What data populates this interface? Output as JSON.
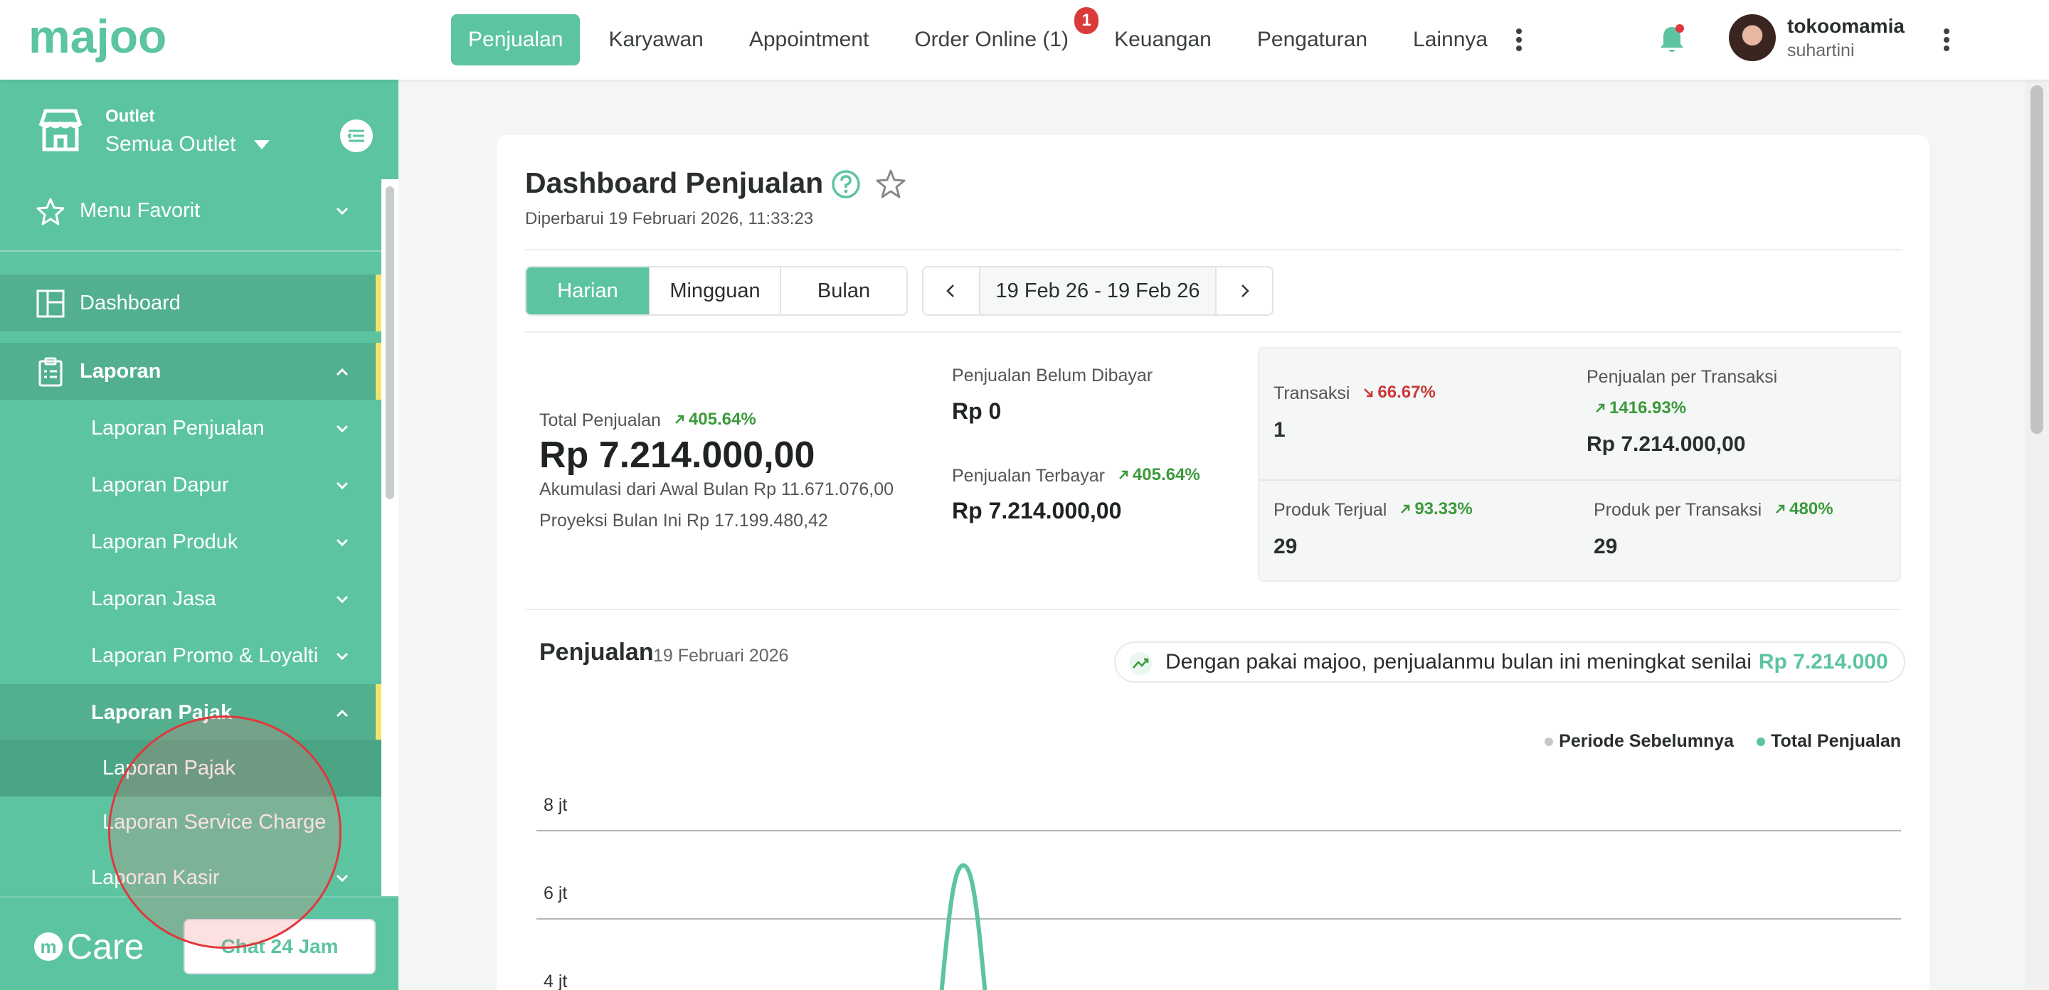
{
  "app": {
    "logo_text": "majoo"
  },
  "topnav": {
    "items": [
      {
        "label": "Penjualan"
      },
      {
        "label": "Karyawan"
      },
      {
        "label": "Appointment"
      },
      {
        "label": "Order Online (1)",
        "badge": "1"
      },
      {
        "label": "Keuangan"
      },
      {
        "label": "Pengaturan"
      },
      {
        "label": "Lainnya"
      }
    ],
    "active": "Penjualan"
  },
  "user": {
    "name": "tokoomamia",
    "sub": "suhartini"
  },
  "sidebar": {
    "outlet_label": "Outlet",
    "outlet_value": "Semua Outlet",
    "items": [
      {
        "label": "Menu Favorit",
        "icon": "star-icon"
      },
      {
        "label": "Dashboard",
        "icon": "dashboard-icon"
      },
      {
        "label": "Laporan",
        "icon": "clipboard-icon"
      },
      {
        "label": "Laporan Penjualan"
      },
      {
        "label": "Laporan Dapur"
      },
      {
        "label": "Laporan Produk"
      },
      {
        "label": "Laporan Jasa"
      },
      {
        "label": "Laporan Promo & Loyalti"
      },
      {
        "label": "Laporan Pajak"
      },
      {
        "label": "Laporan Pajak"
      },
      {
        "label": "Laporan Service Charge"
      },
      {
        "label": "Laporan Kasir"
      }
    ],
    "care_label": "Care",
    "chat_label": "Chat 24 Jam"
  },
  "dashboard": {
    "title": "Dashboard Penjualan",
    "updated": "Diperbarui 19 Februari 2026, 11:33:23",
    "periods": [
      "Harian",
      "Mingguan",
      "Bulan"
    ],
    "active_period": "Harian",
    "date_range": "19 Feb 26 - 19 Feb 26",
    "total": {
      "label": "Total Penjualan",
      "change": "405.64%",
      "value": "Rp 7.214.000,00",
      "accum": "Akumulasi dari Awal Bulan Rp 11.671.076,00",
      "projection": "Proyeksi Bulan Ini Rp 17.199.480,42"
    },
    "unpaid": {
      "label": "Penjualan Belum Dibayar",
      "value": "Rp 0"
    },
    "paid": {
      "label": "Penjualan Terbayar",
      "change": "405.64%",
      "value": "Rp 7.214.000,00"
    },
    "stats": {
      "transaksi": {
        "label": "Transaksi",
        "change": "66.67%",
        "trend": "down",
        "value": "1"
      },
      "per_transaksi": {
        "label": "Penjualan per Transaksi",
        "change": "1416.93%",
        "trend": "up",
        "value": "Rp 7.214.000,00"
      },
      "produk_terjual": {
        "label": "Produk Terjual",
        "change": "93.33%",
        "trend": "up",
        "value": "29"
      },
      "produk_per_transaksi": {
        "label": "Produk per Transaksi",
        "change": "480%",
        "trend": "up",
        "value": "29"
      }
    },
    "sales": {
      "title": "Penjualan",
      "date": "19 Februari 2026",
      "promo_text": "Dengan pakai majoo, penjualanmu bulan ini meningkat senilai",
      "promo_value": "Rp 7.214.000",
      "legend_prev": "Periode Sebelumnya",
      "legend_total": "Total Penjualan"
    }
  },
  "colors": {
    "accent": "#5cc4a0",
    "up": "#3a9a3a",
    "down": "#c93838",
    "badge": "#d93b3b",
    "highlight": "#f1e468"
  },
  "chart_data": {
    "type": "line",
    "y_ticks": [
      "8 jt",
      "6 jt",
      "4 jt"
    ],
    "series": [
      {
        "name": "Total Penjualan",
        "peak_value": 7214000
      }
    ]
  }
}
